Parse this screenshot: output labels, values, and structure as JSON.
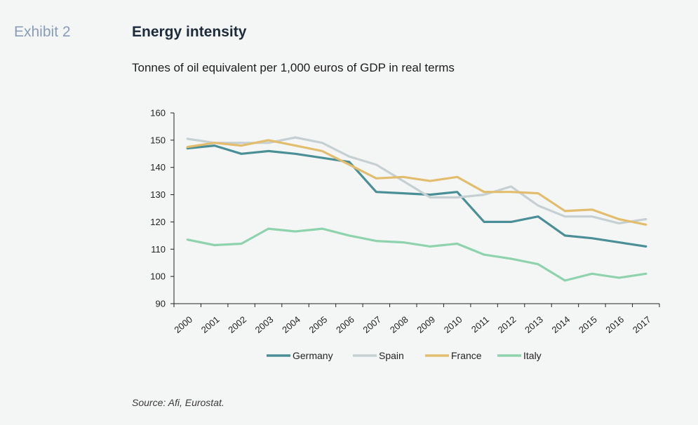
{
  "header": {
    "exhibit": "Exhibit 2",
    "title": "Energy intensity",
    "subtitle": "Tonnes of oil equivalent per 1,000 euros of GDP in real terms"
  },
  "footer": {
    "source": "Source: Afi, Eurostat."
  },
  "chart_data": {
    "type": "line",
    "categories": [
      "2000",
      "2001",
      "2002",
      "2003",
      "2004",
      "2005",
      "2006",
      "2007",
      "2008",
      "2009",
      "2010",
      "2011",
      "2012",
      "2013",
      "2014",
      "2015",
      "2016",
      "2017"
    ],
    "ylim": [
      90,
      160
    ],
    "yticks": [
      90,
      100,
      110,
      120,
      130,
      140,
      150,
      160
    ],
    "grid": false,
    "legend_position": "bottom",
    "series": [
      {
        "name": "Germany",
        "color": "#4a8f96",
        "values": [
          147,
          148,
          145,
          146,
          145,
          143.5,
          142,
          131,
          130.5,
          130,
          131,
          120,
          120,
          122,
          115,
          114,
          112.5,
          111
        ]
      },
      {
        "name": "Spain",
        "color": "#c6d0d2",
        "values": [
          150.5,
          149,
          149,
          149,
          151,
          149,
          144,
          141,
          135,
          129,
          129,
          130,
          133,
          126,
          122,
          122,
          119.5,
          121
        ]
      },
      {
        "name": "France",
        "color": "#e2bd6e",
        "values": [
          147.5,
          149,
          148,
          150,
          148,
          146,
          141,
          136,
          136.5,
          135,
          136.5,
          131,
          131,
          130.5,
          124,
          124.5,
          121,
          119
        ]
      },
      {
        "name": "Italy",
        "color": "#8fd3ae",
        "values": [
          113.5,
          111.5,
          112,
          117.5,
          116.5,
          117.5,
          115,
          113,
          112.5,
          111,
          112,
          108,
          106.5,
          104.5,
          98.5,
          101,
          99.5,
          101
        ]
      }
    ]
  }
}
